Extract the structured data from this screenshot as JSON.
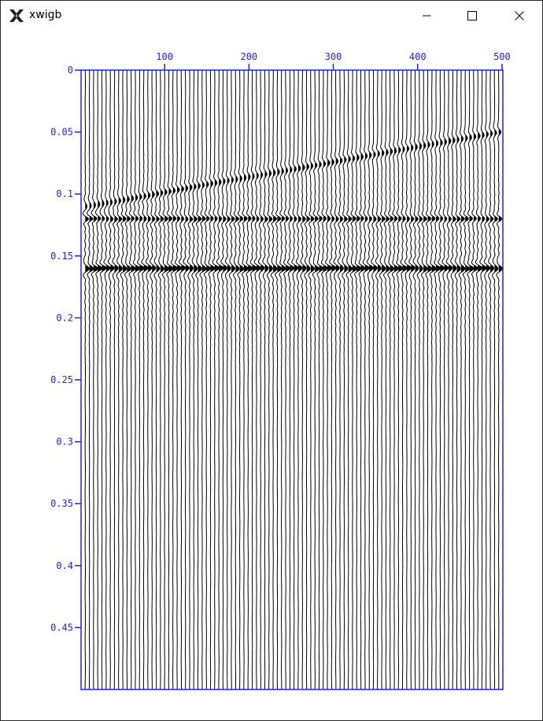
{
  "window": {
    "title": "xwigb"
  },
  "colors": {
    "axis": "#1f1fff",
    "trace": "#000000",
    "background": "#ffffff"
  },
  "icons": {
    "app": "x-logo-icon",
    "minimize": "minimize-icon",
    "maximize": "maximize-icon",
    "close": "close-icon"
  },
  "chart_data": {
    "type": "wiggle",
    "x_ticks": [
      100,
      200,
      300,
      400,
      500
    ],
    "y_ticks": [
      0,
      0.05,
      0.1,
      0.15,
      0.2,
      0.25,
      0.3,
      0.35,
      0.4,
      0.45
    ],
    "x_range": [
      1,
      501
    ],
    "y_range": [
      0,
      0.5
    ],
    "trace_count": 100,
    "trace_spacing": 5,
    "events": [
      {
        "name": "dipping reflector",
        "t_at_x1": 0.11,
        "t_at_x501": 0.05
      },
      {
        "name": "flat reflector",
        "t": 0.12
      },
      {
        "name": "strong flat reflector",
        "t": 0.16
      }
    ]
  }
}
